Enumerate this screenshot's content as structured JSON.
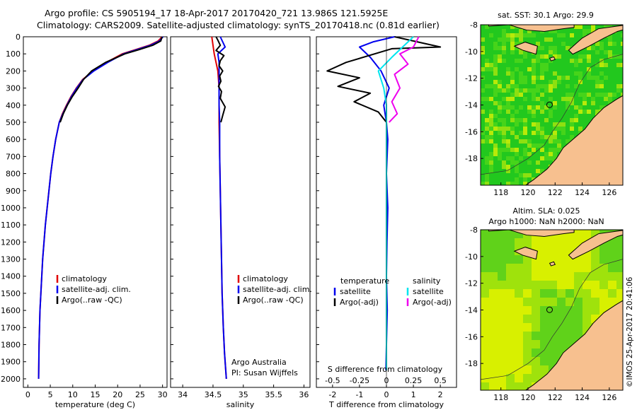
{
  "header": {
    "line1": "Argo profile: CS 5905194_17 18-Apr-2017 20170420_721 13.986S 121.5925E",
    "line2": "Climatology: CARS2009. Satellite-adjusted climatology: synTS_20170418.nc (0.81d earlier)"
  },
  "credit": "©IMOS 25-Apr-2017 20:41:06",
  "colors": {
    "climatology": "#e00000",
    "satellite": "#0000ee",
    "argo": "#000000",
    "sal_satellite": "#00e5ee",
    "sal_argo": "#ee00ee",
    "land": "#f7c08f",
    "ocean_green": "#22c81e",
    "ocean_yellow": "#d8f000"
  },
  "chart_data": [
    {
      "type": "line",
      "panel": "temperature",
      "xlabel": "temperature (deg C)",
      "xlim": [
        -1,
        31
      ],
      "xticks": [
        0,
        5,
        10,
        15,
        20,
        25,
        30
      ],
      "ylim": [
        0,
        2050
      ],
      "yticks": [
        0,
        100,
        200,
        300,
        400,
        500,
        600,
        700,
        800,
        900,
        1000,
        1100,
        1200,
        1300,
        1400,
        1500,
        1600,
        1700,
        1800,
        1900,
        2000
      ],
      "y_reversed": true,
      "legend": [
        "climatology",
        "satellite-adj. clim.",
        "Argo(..raw -QC)"
      ],
      "series": [
        {
          "name": "climatology",
          "color": "#e00000",
          "x": [
            29.9,
            29.0,
            27.0,
            24.0,
            21.0,
            17.5,
            14.5,
            12.2,
            10.8,
            9.6,
            8.6,
            7.7,
            7.0,
            6.2,
            5.6,
            5.1,
            4.7,
            4.3,
            3.9,
            3.6,
            3.3,
            3.1,
            2.9,
            2.7,
            2.5,
            2.4
          ],
          "y": [
            0,
            25,
            50,
            75,
            100,
            150,
            200,
            250,
            300,
            350,
            400,
            450,
            500,
            600,
            700,
            800,
            900,
            1000,
            1100,
            1200,
            1300,
            1400,
            1500,
            1600,
            1800,
            2000
          ]
        },
        {
          "name": "satellite-adj. clim.",
          "color": "#0000ee",
          "x": [
            30.1,
            29.3,
            27.3,
            24.3,
            21.3,
            17.8,
            14.7,
            12.3,
            10.9,
            9.7,
            8.7,
            7.8,
            7.0,
            6.2,
            5.6,
            5.1,
            4.7,
            4.3,
            3.9,
            3.6,
            3.3,
            3.1,
            2.9,
            2.7,
            2.5,
            2.4
          ],
          "y": [
            0,
            25,
            50,
            75,
            100,
            150,
            200,
            250,
            300,
            350,
            400,
            450,
            500,
            600,
            700,
            800,
            900,
            1000,
            1100,
            1200,
            1300,
            1400,
            1500,
            1600,
            1800,
            2000
          ]
        },
        {
          "name": "Argo(..raw -QC)",
          "color": "#000000",
          "x": [
            29.9,
            29.6,
            27.8,
            24.8,
            21.6,
            17.3,
            14.2,
            12.4,
            11.2,
            9.9,
            8.8,
            7.9,
            7.2
          ],
          "y": [
            0,
            25,
            50,
            75,
            100,
            150,
            200,
            250,
            300,
            350,
            400,
            450,
            500
          ]
        }
      ]
    },
    {
      "type": "line",
      "panel": "salinity",
      "xlabel": "salinity",
      "xlim": [
        33.8,
        36.1
      ],
      "xticks": [
        34,
        34.5,
        35,
        35.5,
        36
      ],
      "xticklabels": [
        "34",
        "34.5",
        "35",
        "35.5",
        "36"
      ],
      "ylim": [
        0,
        2050
      ],
      "y_reversed": true,
      "legend": [
        "climatology",
        "satellite-adj. clim.",
        "Argo(..raw -QC)"
      ],
      "annotation": [
        "Argo Australia",
        "PI: Susan Wijffels"
      ],
      "series": [
        {
          "name": "climatology",
          "color": "#e00000",
          "x": [
            34.48,
            34.5,
            34.52,
            34.55,
            34.58,
            34.6,
            34.6,
            34.6,
            34.61,
            34.62,
            34.63,
            34.64,
            34.65,
            34.67,
            34.69,
            34.72
          ],
          "y": [
            0,
            50,
            100,
            150,
            200,
            300,
            400,
            500,
            700,
            900,
            1100,
            1300,
            1500,
            1700,
            1850,
            2000
          ]
        },
        {
          "name": "satellite-adj. clim.",
          "color": "#0000ee",
          "x": [
            34.62,
            34.66,
            34.7,
            34.58,
            34.6,
            34.6,
            34.6,
            34.61,
            34.61,
            34.62,
            34.63,
            34.64,
            34.65,
            34.67,
            34.69,
            34.72
          ],
          "y": [
            0,
            30,
            60,
            100,
            150,
            300,
            400,
            500,
            700,
            900,
            1100,
            1300,
            1500,
            1700,
            1850,
            2000
          ]
        },
        {
          "name": "Argo(..raw -QC)",
          "color": "#000000",
          "x": [
            34.55,
            34.58,
            34.62,
            34.55,
            34.68,
            34.62,
            34.6,
            34.66,
            34.61,
            34.63,
            34.59,
            34.64,
            34.62,
            34.7,
            34.66,
            34.63
          ],
          "y": [
            0,
            20,
            50,
            80,
            110,
            140,
            170,
            200,
            230,
            260,
            290,
            320,
            360,
            410,
            460,
            500
          ]
        }
      ]
    },
    {
      "type": "line",
      "panel": "differences",
      "xlabel_top": "S difference from climatology",
      "xticks_top": [
        -0.5,
        -0.25,
        0,
        0.25,
        0.5
      ],
      "xticklabels_top": [
        "-0.5",
        "-0.25",
        "0",
        "0.25",
        "0.5"
      ],
      "xlabel": "T difference from climatology",
      "xlim": [
        -2.6,
        2.6
      ],
      "xticks": [
        -2,
        -1,
        0,
        1,
        2
      ],
      "ylim": [
        0,
        2050
      ],
      "y_reversed": true,
      "legend_temperature": {
        "heading": "temperature",
        "items": [
          "satellite",
          "Argo(-adj)"
        ]
      },
      "legend_salinity": {
        "heading": "salinity",
        "items": [
          "satellite",
          "Argo(-adj)"
        ]
      },
      "series": [
        {
          "name": "T satellite",
          "color": "#0000ee",
          "x": [
            0.3,
            -0.5,
            -1.0,
            -0.6,
            -0.2,
            0.1,
            -0.1,
            0.0,
            0.05,
            0.0,
            0.05,
            0.02,
            0.0,
            0.03,
            0.0,
            -0.02
          ],
          "y": [
            0,
            30,
            60,
            120,
            200,
            300,
            400,
            500,
            600,
            800,
            1000,
            1200,
            1400,
            1600,
            1800,
            1950
          ]
        },
        {
          "name": "T Argo(-adj)",
          "color": "#000000",
          "x": [
            0.3,
            2.0,
            0.2,
            -1.5,
            -2.2,
            -1.0,
            -1.8,
            -0.6,
            -1.2,
            -0.3,
            0.0
          ],
          "y": [
            0,
            60,
            70,
            150,
            200,
            240,
            290,
            330,
            380,
            440,
            500
          ]
        },
        {
          "name": "S satellite",
          "color": "#00e5ee",
          "x": [
            1.0,
            0.6,
            0.2,
            -0.3,
            -0.1,
            0.0,
            0.0,
            0.0,
            0.0,
            0.0,
            0.0
          ],
          "y": [
            0,
            60,
            120,
            200,
            300,
            400,
            500,
            700,
            1000,
            1500,
            1950
          ]
        },
        {
          "name": "S Argo(-adj)",
          "color": "#ee00ee",
          "x": [
            1.2,
            1.0,
            0.5,
            0.8,
            0.3,
            0.5,
            0.2,
            0.4,
            0.1
          ],
          "y": [
            0,
            60,
            100,
            160,
            220,
            300,
            380,
            450,
            500
          ]
        }
      ]
    },
    {
      "type": "heatmap",
      "panel": "map-sst",
      "title": "sat. SST: 30.1  Argo: 29.9",
      "xlim": [
        116.5,
        127
      ],
      "xticks": [
        118,
        120,
        122,
        124,
        126
      ],
      "ylim": [
        -20,
        -8
      ],
      "yticks": [
        -8,
        -10,
        -12,
        -14,
        -16,
        -18
      ],
      "profile_position": [
        121.5925,
        -13.986
      ]
    },
    {
      "type": "heatmap",
      "panel": "map-sla",
      "title": "Altim. SLA: 0.025",
      "subtitle": "Argo h1000: NaN h2000: NaN",
      "xlim": [
        116.5,
        127
      ],
      "xticks": [
        118,
        120,
        122,
        124,
        126
      ],
      "ylim": [
        -20,
        -8
      ],
      "yticks": [
        -8,
        -10,
        -12,
        -14,
        -16,
        -18
      ],
      "profile_position": [
        121.5925,
        -13.986
      ]
    }
  ]
}
